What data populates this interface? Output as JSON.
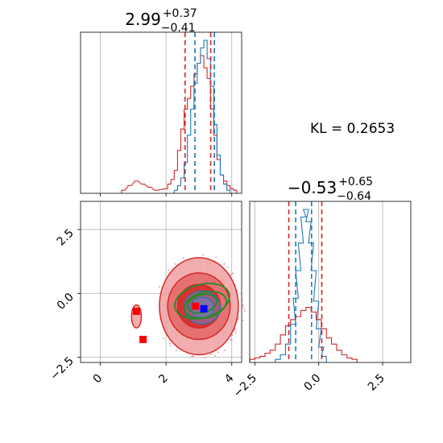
{
  "chart_data": [
    {
      "type": "histogram",
      "panel": "top-left",
      "title": {
        "value": "2.99",
        "plus": "+0.37",
        "minus": "−0.41"
      },
      "xlim": [
        -0.6,
        4.3
      ],
      "grid": true,
      "series": [
        {
          "name": "red",
          "color": "#d62728",
          "bins": [
            [
              0.7,
              0.02
            ],
            [
              0.9,
              0.05
            ],
            [
              1.1,
              0.08
            ],
            [
              1.3,
              0.06
            ],
            [
              1.5,
              0.04
            ],
            [
              1.7,
              0.02
            ],
            [
              2.0,
              0.03
            ],
            [
              2.1,
              0.06
            ],
            [
              2.2,
              0.09
            ],
            [
              2.3,
              0.15
            ],
            [
              2.4,
              0.28
            ],
            [
              2.5,
              0.42
            ],
            [
              2.6,
              0.55
            ],
            [
              2.7,
              0.62
            ],
            [
              2.8,
              0.7
            ],
            [
              2.9,
              0.78
            ],
            [
              3.0,
              0.85
            ],
            [
              3.1,
              0.9
            ],
            [
              3.2,
              0.82
            ],
            [
              3.3,
              0.75
            ],
            [
              3.4,
              0.55
            ],
            [
              3.5,
              0.38
            ],
            [
              3.6,
              0.22
            ],
            [
              3.7,
              0.12
            ],
            [
              3.8,
              0.08
            ],
            [
              3.9,
              0.05
            ],
            [
              4.0,
              0.03
            ],
            [
              4.1,
              0.02
            ]
          ],
          "quantiles": [
            2.58,
            3.36
          ]
        },
        {
          "name": "blue",
          "color": "#1f77b4",
          "bins": [
            [
              2.3,
              0.02
            ],
            [
              2.4,
              0.05
            ],
            [
              2.5,
              0.1
            ],
            [
              2.6,
              0.2
            ],
            [
              2.7,
              0.38
            ],
            [
              2.8,
              0.55
            ],
            [
              2.9,
              0.72
            ],
            [
              3.0,
              0.85
            ],
            [
              3.1,
              0.95
            ],
            [
              3.2,
              1.0
            ],
            [
              3.3,
              0.88
            ],
            [
              3.4,
              0.7
            ],
            [
              3.5,
              0.45
            ],
            [
              3.6,
              0.25
            ],
            [
              3.7,
              0.12
            ],
            [
              3.8,
              0.06
            ],
            [
              3.9,
              0.02
            ]
          ],
          "quantiles": [
            2.88,
            3.47
          ]
        }
      ]
    },
    {
      "type": "histogram",
      "panel": "bottom-right",
      "title": {
        "value": "−0.53",
        "plus": "+0.65",
        "minus": "−0.64"
      },
      "xlim": [
        -2.7,
        3.6
      ],
      "xticks": [
        "−2.5",
        "0.0",
        "2.5"
      ],
      "grid": true,
      "series": [
        {
          "name": "red",
          "color": "#d62728",
          "bins": [
            [
              -2.6,
              0.02
            ],
            [
              -2.4,
              0.03
            ],
            [
              -2.2,
              0.04
            ],
            [
              -2.0,
              0.06
            ],
            [
              -1.8,
              0.08
            ],
            [
              -1.6,
              0.12
            ],
            [
              -1.4,
              0.18
            ],
            [
              -1.2,
              0.24
            ],
            [
              -1.0,
              0.28
            ],
            [
              -0.8,
              0.3
            ],
            [
              -0.6,
              0.34
            ],
            [
              -0.4,
              0.36
            ],
            [
              -0.2,
              0.33
            ],
            [
              0.0,
              0.28
            ],
            [
              0.2,
              0.22
            ],
            [
              0.4,
              0.16
            ],
            [
              0.6,
              0.12
            ],
            [
              0.8,
              0.08
            ],
            [
              1.0,
              0.05
            ],
            [
              1.2,
              0.03
            ],
            [
              1.4,
              0.02
            ]
          ],
          "quantiles": [
            -1.17,
            0.12
          ]
        },
        {
          "name": "blue",
          "color": "#1f77b4",
          "bins": [
            [
              -1.6,
              0.02
            ],
            [
              -1.4,
              0.05
            ],
            [
              -1.2,
              0.12
            ],
            [
              -1.0,
              0.25
            ],
            [
              -0.9,
              0.42
            ],
            [
              -0.8,
              0.6
            ],
            [
              -0.7,
              0.78
            ],
            [
              -0.6,
              0.95
            ],
            [
              -0.5,
              1.0
            ],
            [
              -0.4,
              0.92
            ],
            [
              -0.3,
              0.78
            ],
            [
              -0.2,
              0.6
            ],
            [
              -0.1,
              0.4
            ],
            [
              0.0,
              0.22
            ],
            [
              0.1,
              0.1
            ],
            [
              0.2,
              0.04
            ]
          ],
          "quantiles": [
            -0.9,
            -0.28
          ]
        }
      ]
    },
    {
      "type": "contour",
      "panel": "bottom-left",
      "xlim": [
        -0.6,
        4.3
      ],
      "ylim": [
        -2.7,
        3.6
      ],
      "xticks": [
        "0",
        "2",
        "4"
      ],
      "yticks": [
        "−2.5",
        "0.0",
        "2.5"
      ],
      "grid": true,
      "series": [
        {
          "name": "red",
          "color": "#d62728",
          "levels": [
            {
              "cx": 3.0,
              "cy": -0.5,
              "rx": 1.2,
              "ry": 1.9,
              "fill": "#f0a0a0"
            },
            {
              "cx": 3.0,
              "cy": -0.5,
              "rx": 0.95,
              "ry": 1.3,
              "fill": "#e46666"
            },
            {
              "cx": 3.0,
              "cy": -0.5,
              "rx": 0.65,
              "ry": 0.85,
              "fill": "#d62728"
            },
            {
              "cx": 1.1,
              "cy": -0.9,
              "rx": 0.15,
              "ry": 0.45,
              "fill": "#f0a0a0"
            }
          ],
          "markers": [
            [
              1.1,
              -0.7
            ],
            [
              1.3,
              -1.8
            ],
            [
              2.9,
              -0.5
            ]
          ]
        },
        {
          "name": "blue",
          "color": "#1f77b4",
          "levels": [
            {
              "cx": 3.1,
              "cy": -0.55,
              "rx": 0.55,
              "ry": 0.65
            },
            {
              "cx": 3.1,
              "cy": -0.55,
              "rx": 0.35,
              "ry": 0.4
            }
          ],
          "markers": [
            [
              3.15,
              -0.6
            ]
          ]
        },
        {
          "name": "green",
          "color": "#228b22",
          "levels": [
            {
              "cx": 3.1,
              "cy": -0.3,
              "rx": 0.85,
              "ry": 0.65,
              "rot": -15
            },
            {
              "cx": 3.2,
              "cy": -0.45,
              "rx": 0.65,
              "ry": 0.5,
              "rot": -15
            },
            {
              "cx": 3.1,
              "cy": -0.4,
              "rx": 0.45,
              "ry": 0.35,
              "rot": -15
            }
          ]
        }
      ]
    }
  ],
  "annotation": {
    "kl_text": "KL = 0.2653"
  }
}
